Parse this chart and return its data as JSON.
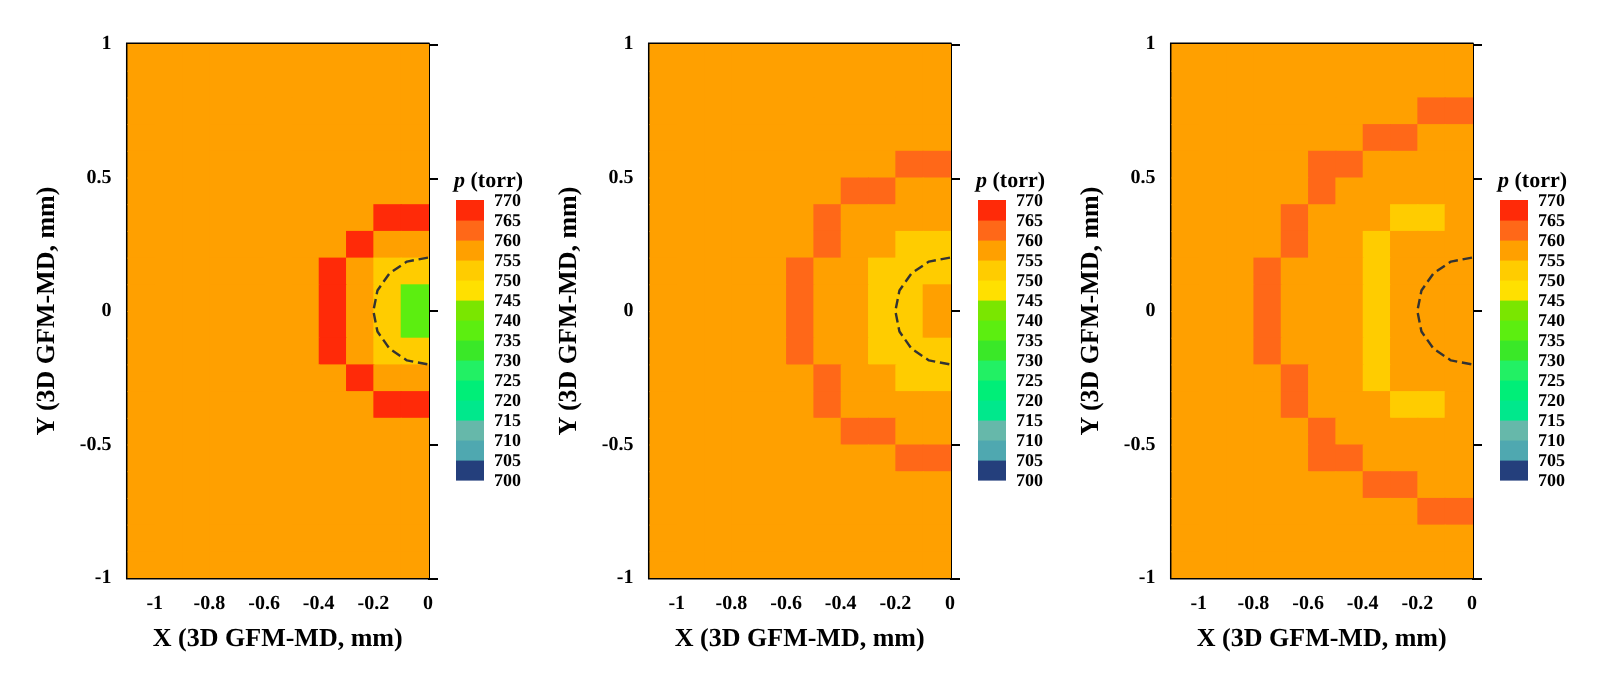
{
  "chart_data": [
    {
      "type": "heatmap",
      "xlabel": "X (3D GFM-MD, mm)",
      "ylabel": "Y (3D GFM-MD, mm)",
      "clabel": "p (torr)",
      "grid": false,
      "cells": [
        [
          757.5,
          757.5,
          757.5,
          757.5,
          757.5,
          757.5,
          757.5,
          757.5,
          757.5,
          757.5,
          757.5
        ],
        [
          757.5,
          757.5,
          757.5,
          757.5,
          757.5,
          757.5,
          757.5,
          757.5,
          757.5,
          757.5,
          757.5
        ],
        [
          757.5,
          757.5,
          757.5,
          757.5,
          757.5,
          757.5,
          757.5,
          757.5,
          757.5,
          757.5,
          757.5
        ],
        [
          757.5,
          757.5,
          757.5,
          757.5,
          757.5,
          757.5,
          757.5,
          757.5,
          757.5,
          757.5,
          757.5
        ],
        [
          757.5,
          757.5,
          757.5,
          757.5,
          757.5,
          757.5,
          757.5,
          757.5,
          757.5,
          757.5,
          757.5
        ],
        [
          757.5,
          757.5,
          757.5,
          757.5,
          757.5,
          757.5,
          757.5,
          757.5,
          757.5,
          757.5,
          757.5
        ],
        [
          757.5,
          757.5,
          757.5,
          757.5,
          757.5,
          757.5,
          757.5,
          757.5,
          757.5,
          767.5,
          767.5
        ],
        [
          757.5,
          757.5,
          757.5,
          757.5,
          757.5,
          757.5,
          757.5,
          757.5,
          767.5,
          757.5,
          757.5
        ],
        [
          757.5,
          757.5,
          757.5,
          757.5,
          757.5,
          757.5,
          757.5,
          767.5,
          757.5,
          752.5,
          752.5
        ],
        [
          757.5,
          757.5,
          757.5,
          757.5,
          757.5,
          757.5,
          757.5,
          767.5,
          757.5,
          752.5,
          737.5
        ],
        [
          757.5,
          757.5,
          757.5,
          757.5,
          757.5,
          757.5,
          757.5,
          767.5,
          757.5,
          752.5,
          737.5
        ],
        [
          757.5,
          757.5,
          757.5,
          757.5,
          757.5,
          757.5,
          757.5,
          767.5,
          757.5,
          752.5,
          752.5
        ],
        [
          757.5,
          757.5,
          757.5,
          757.5,
          757.5,
          757.5,
          757.5,
          757.5,
          767.5,
          757.5,
          757.5
        ],
        [
          757.5,
          757.5,
          757.5,
          757.5,
          757.5,
          757.5,
          757.5,
          757.5,
          757.5,
          767.5,
          767.5
        ],
        [
          757.5,
          757.5,
          757.5,
          757.5,
          757.5,
          757.5,
          757.5,
          757.5,
          757.5,
          757.5,
          757.5
        ],
        [
          757.5,
          757.5,
          757.5,
          757.5,
          757.5,
          757.5,
          757.5,
          757.5,
          757.5,
          757.5,
          757.5
        ],
        [
          757.5,
          757.5,
          757.5,
          757.5,
          757.5,
          757.5,
          757.5,
          757.5,
          757.5,
          757.5,
          757.5
        ],
        [
          757.5,
          757.5,
          757.5,
          757.5,
          757.5,
          757.5,
          757.5,
          757.5,
          757.5,
          757.5,
          757.5
        ],
        [
          757.5,
          757.5,
          757.5,
          757.5,
          757.5,
          757.5,
          757.5,
          757.5,
          757.5,
          757.5,
          757.5
        ],
        [
          757.5,
          757.5,
          757.5,
          757.5,
          757.5,
          757.5,
          757.5,
          757.5,
          757.5,
          757.5,
          757.5
        ]
      ],
      "xlim": [
        -1.1,
        0
      ],
      "xticks": [
        -1,
        -0.8,
        -0.6,
        -0.4,
        -0.2,
        0
      ],
      "ylim": [
        -1,
        1
      ],
      "yticks": [
        -1,
        -0.5,
        0,
        0.5,
        1
      ],
      "clim": [
        700,
        770
      ],
      "cticks": [
        700,
        705,
        710,
        715,
        720,
        725,
        730,
        735,
        740,
        745,
        750,
        755,
        760,
        765,
        770
      ],
      "series": [
        {
          "type": "line",
          "line_style": "dashed",
          "color": "#333333",
          "x": [
            0,
            -0.077,
            -0.141,
            -0.185,
            -0.2,
            -0.185,
            -0.141,
            -0.077,
            0
          ],
          "values": [
            0.2,
            0.185,
            0.141,
            0.077,
            0,
            -0.077,
            -0.141,
            -0.185,
            -0.2
          ]
        }
      ]
    },
    {
      "type": "heatmap",
      "xlabel": "X (3D GFM-MD, mm)",
      "ylabel": "Y (3D GFM-MD, mm)",
      "clabel": "p (torr)",
      "grid": false,
      "cells": [
        [
          757.5,
          757.5,
          757.5,
          757.5,
          757.5,
          757.5,
          757.5,
          757.5,
          757.5,
          757.5,
          757.5
        ],
        [
          757.5,
          757.5,
          757.5,
          757.5,
          757.5,
          757.5,
          757.5,
          757.5,
          757.5,
          757.5,
          757.5
        ],
        [
          757.5,
          757.5,
          757.5,
          757.5,
          757.5,
          757.5,
          757.5,
          757.5,
          757.5,
          757.5,
          757.5
        ],
        [
          757.5,
          757.5,
          757.5,
          757.5,
          757.5,
          757.5,
          757.5,
          757.5,
          757.5,
          757.5,
          757.5
        ],
        [
          757.5,
          757.5,
          757.5,
          757.5,
          757.5,
          757.5,
          757.5,
          757.5,
          757.5,
          762.5,
          762.5
        ],
        [
          757.5,
          757.5,
          757.5,
          757.5,
          757.5,
          757.5,
          757.5,
          762.5,
          762.5,
          757.5,
          757.5
        ],
        [
          757.5,
          757.5,
          757.5,
          757.5,
          757.5,
          757.5,
          762.5,
          757.5,
          757.5,
          757.5,
          757.5
        ],
        [
          757.5,
          757.5,
          757.5,
          757.5,
          757.5,
          757.5,
          762.5,
          757.5,
          757.5,
          752.5,
          752.5
        ],
        [
          757.5,
          757.5,
          757.5,
          757.5,
          757.5,
          762.5,
          757.5,
          757.5,
          752.5,
          752.5,
          752.5
        ],
        [
          757.5,
          757.5,
          757.5,
          757.5,
          757.5,
          762.5,
          757.5,
          757.5,
          752.5,
          752.5,
          757.5
        ],
        [
          757.5,
          757.5,
          757.5,
          757.5,
          757.5,
          762.5,
          757.5,
          757.5,
          752.5,
          752.5,
          757.5
        ],
        [
          757.5,
          757.5,
          757.5,
          757.5,
          757.5,
          762.5,
          757.5,
          757.5,
          752.5,
          752.5,
          752.5
        ],
        [
          757.5,
          757.5,
          757.5,
          757.5,
          757.5,
          757.5,
          762.5,
          757.5,
          757.5,
          752.5,
          752.5
        ],
        [
          757.5,
          757.5,
          757.5,
          757.5,
          757.5,
          757.5,
          762.5,
          757.5,
          757.5,
          757.5,
          757.5
        ],
        [
          757.5,
          757.5,
          757.5,
          757.5,
          757.5,
          757.5,
          757.5,
          762.5,
          762.5,
          757.5,
          757.5
        ],
        [
          757.5,
          757.5,
          757.5,
          757.5,
          757.5,
          757.5,
          757.5,
          757.5,
          757.5,
          762.5,
          762.5
        ],
        [
          757.5,
          757.5,
          757.5,
          757.5,
          757.5,
          757.5,
          757.5,
          757.5,
          757.5,
          757.5,
          757.5
        ],
        [
          757.5,
          757.5,
          757.5,
          757.5,
          757.5,
          757.5,
          757.5,
          757.5,
          757.5,
          757.5,
          757.5
        ],
        [
          757.5,
          757.5,
          757.5,
          757.5,
          757.5,
          757.5,
          757.5,
          757.5,
          757.5,
          757.5,
          757.5
        ],
        [
          757.5,
          757.5,
          757.5,
          757.5,
          757.5,
          757.5,
          757.5,
          757.5,
          757.5,
          757.5,
          757.5
        ]
      ],
      "xlim": [
        -1.1,
        0
      ],
      "xticks": [
        -1,
        -0.8,
        -0.6,
        -0.4,
        -0.2,
        0
      ],
      "ylim": [
        -1,
        1
      ],
      "yticks": [
        -1,
        -0.5,
        0,
        0.5,
        1
      ],
      "clim": [
        700,
        770
      ],
      "cticks": [
        700,
        705,
        710,
        715,
        720,
        725,
        730,
        735,
        740,
        745,
        750,
        755,
        760,
        765,
        770
      ],
      "series": [
        {
          "type": "line",
          "line_style": "dashed",
          "color": "#333333",
          "x": [
            0,
            -0.077,
            -0.141,
            -0.185,
            -0.2,
            -0.185,
            -0.141,
            -0.077,
            0
          ],
          "values": [
            0.2,
            0.185,
            0.141,
            0.077,
            0,
            -0.077,
            -0.141,
            -0.185,
            -0.2
          ]
        }
      ]
    },
    {
      "type": "heatmap",
      "xlabel": "X (3D GFM-MD, mm)",
      "ylabel": "Y (3D GFM-MD, mm)",
      "clabel": "p (torr)",
      "grid": false,
      "cells": [
        [
          757.5,
          757.5,
          757.5,
          757.5,
          757.5,
          757.5,
          757.5,
          757.5,
          757.5,
          757.5,
          757.5
        ],
        [
          757.5,
          757.5,
          757.5,
          757.5,
          757.5,
          757.5,
          757.5,
          757.5,
          757.5,
          757.5,
          757.5
        ],
        [
          757.5,
          757.5,
          757.5,
          757.5,
          757.5,
          757.5,
          757.5,
          757.5,
          757.5,
          762.5,
          762.5
        ],
        [
          757.5,
          757.5,
          757.5,
          757.5,
          757.5,
          757.5,
          757.5,
          762.5,
          762.5,
          757.5,
          757.5
        ],
        [
          757.5,
          757.5,
          757.5,
          757.5,
          757.5,
          762.5,
          762.5,
          757.5,
          757.5,
          757.5,
          757.5
        ],
        [
          757.5,
          757.5,
          757.5,
          757.5,
          757.5,
          762.5,
          757.5,
          757.5,
          757.5,
          757.5,
          757.5
        ],
        [
          757.5,
          757.5,
          757.5,
          757.5,
          762.5,
          757.5,
          757.5,
          757.5,
          752.5,
          752.5,
          757.5
        ],
        [
          757.5,
          757.5,
          757.5,
          757.5,
          762.5,
          757.5,
          757.5,
          752.5,
          757.5,
          757.5,
          757.5
        ],
        [
          757.5,
          757.5,
          757.5,
          762.5,
          757.5,
          757.5,
          757.5,
          752.5,
          757.5,
          757.5,
          757.5
        ],
        [
          757.5,
          757.5,
          757.5,
          762.5,
          757.5,
          757.5,
          757.5,
          752.5,
          757.5,
          757.5,
          757.5
        ],
        [
          757.5,
          757.5,
          757.5,
          762.5,
          757.5,
          757.5,
          757.5,
          752.5,
          757.5,
          757.5,
          757.5
        ],
        [
          757.5,
          757.5,
          757.5,
          762.5,
          757.5,
          757.5,
          757.5,
          752.5,
          757.5,
          757.5,
          757.5
        ],
        [
          757.5,
          757.5,
          757.5,
          757.5,
          762.5,
          757.5,
          757.5,
          752.5,
          757.5,
          757.5,
          757.5
        ],
        [
          757.5,
          757.5,
          757.5,
          757.5,
          762.5,
          757.5,
          757.5,
          757.5,
          752.5,
          752.5,
          757.5
        ],
        [
          757.5,
          757.5,
          757.5,
          757.5,
          757.5,
          762.5,
          757.5,
          757.5,
          757.5,
          757.5,
          757.5
        ],
        [
          757.5,
          757.5,
          757.5,
          757.5,
          757.5,
          762.5,
          762.5,
          757.5,
          757.5,
          757.5,
          757.5
        ],
        [
          757.5,
          757.5,
          757.5,
          757.5,
          757.5,
          757.5,
          757.5,
          762.5,
          762.5,
          757.5,
          757.5
        ],
        [
          757.5,
          757.5,
          757.5,
          757.5,
          757.5,
          757.5,
          757.5,
          757.5,
          757.5,
          762.5,
          762.5
        ],
        [
          757.5,
          757.5,
          757.5,
          757.5,
          757.5,
          757.5,
          757.5,
          757.5,
          757.5,
          757.5,
          757.5
        ],
        [
          757.5,
          757.5,
          757.5,
          757.5,
          757.5,
          757.5,
          757.5,
          757.5,
          757.5,
          757.5,
          757.5
        ]
      ],
      "xlim": [
        -1.1,
        0
      ],
      "xticks": [
        -1,
        -0.8,
        -0.6,
        -0.4,
        -0.2,
        0
      ],
      "ylim": [
        -1,
        1
      ],
      "yticks": [
        -1,
        -0.5,
        0,
        0.5,
        1
      ],
      "clim": [
        700,
        770
      ],
      "cticks": [
        700,
        705,
        710,
        715,
        720,
        725,
        730,
        735,
        740,
        745,
        750,
        755,
        760,
        765,
        770
      ],
      "series": [
        {
          "type": "line",
          "line_style": "dashed",
          "color": "#333333",
          "x": [
            0,
            -0.077,
            -0.141,
            -0.185,
            -0.2,
            -0.185,
            -0.141,
            -0.077,
            0
          ],
          "values": [
            0.2,
            0.185,
            0.141,
            0.077,
            0,
            -0.077,
            -0.141,
            -0.185,
            -0.2
          ]
        }
      ]
    }
  ]
}
